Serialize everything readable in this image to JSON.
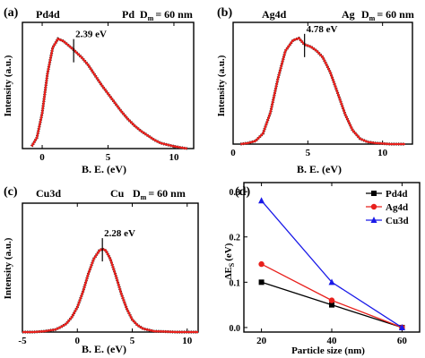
{
  "figure": {
    "panels": [
      {
        "label": "(a)",
        "header_left": "Pd4d",
        "header_element": "Pd",
        "dm_text": "D",
        "dm_sub": "m",
        "dm_value": "= 60 nm",
        "annotation": "2.39 eV",
        "xlabel": "B. E. (eV)",
        "ylabel": "Intensity (a.u.)"
      },
      {
        "label": "(b)",
        "header_left": "Ag4d",
        "header_element": "Ag",
        "dm_text": "D",
        "dm_sub": "m",
        "dm_value": "= 60 nm",
        "annotation": "4.78 eV",
        "xlabel": "B. E. (eV)",
        "ylabel": "Intensity (a.u.)"
      },
      {
        "label": "(c)",
        "header_left": "Cu3d",
        "header_element": "Cu",
        "dm_text": "D",
        "dm_sub": "m",
        "dm_value": "= 60 nm",
        "annotation": "2.28 eV",
        "xlabel": "B. E. (eV)",
        "ylabel": "Intensity (a.u.)"
      },
      {
        "label": "(d)",
        "xlabel": "Particle size (nm)",
        "ylabel_main": "ΔE",
        "ylabel_sub": "S",
        "ylabel_unit": "(eV)"
      }
    ]
  },
  "chart_data": [
    {
      "type": "line",
      "title": "Pd4d",
      "xlabel": "B. E. (eV)",
      "ylabel": "Intensity (a.u.)",
      "xlim": [
        -1.5,
        11.5
      ],
      "ylim": [
        0,
        1.15
      ],
      "xticks": [
        0,
        5,
        10
      ],
      "series": [
        {
          "name": "data",
          "color": "#111111",
          "style": "dotted",
          "x": [
            -0.8,
            -0.4,
            0.0,
            0.4,
            0.8,
            1.2,
            1.6,
            2.0,
            2.39,
            3.0,
            3.5,
            4.0,
            4.5,
            5.0,
            5.5,
            6.0,
            6.5,
            7.0,
            7.5,
            8.0,
            8.5,
            9.0,
            9.5,
            10.0,
            10.5,
            11.0
          ],
          "y": [
            0.02,
            0.1,
            0.32,
            0.68,
            0.92,
            1.0,
            0.98,
            0.94,
            0.9,
            0.83,
            0.76,
            0.67,
            0.58,
            0.5,
            0.42,
            0.34,
            0.27,
            0.21,
            0.16,
            0.12,
            0.08,
            0.05,
            0.035,
            0.02,
            0.01,
            0.0
          ]
        },
        {
          "name": "fit",
          "color": "#e8201c",
          "style": "solid",
          "x": [
            -0.8,
            -0.4,
            0.0,
            0.4,
            0.8,
            1.2,
            1.6,
            2.0,
            2.39,
            3.0,
            3.5,
            4.0,
            4.5,
            5.0,
            5.5,
            6.0,
            6.5,
            7.0,
            7.5,
            8.0,
            8.5,
            9.0,
            9.5,
            10.0,
            10.5,
            11.0
          ],
          "y": [
            0.02,
            0.1,
            0.32,
            0.68,
            0.92,
            1.0,
            0.98,
            0.94,
            0.9,
            0.83,
            0.76,
            0.67,
            0.58,
            0.5,
            0.42,
            0.34,
            0.27,
            0.21,
            0.16,
            0.12,
            0.08,
            0.05,
            0.035,
            0.02,
            0.01,
            0.0
          ]
        }
      ],
      "annotation": {
        "text": "2.39 eV",
        "x": 2.39
      }
    },
    {
      "type": "line",
      "title": "Ag4d",
      "xlabel": "B. E. (eV)",
      "ylabel": "Intensity (a.u.)",
      "xlim": [
        0,
        12
      ],
      "ylim": [
        0,
        1.15
      ],
      "xticks": [
        0,
        5,
        10
      ],
      "series": [
        {
          "name": "data",
          "color": "#111111",
          "style": "dotted",
          "x": [
            0.5,
            1.0,
            1.5,
            2.0,
            2.5,
            3.0,
            3.5,
            4.0,
            4.4,
            4.78,
            5.2,
            5.6,
            6.0,
            6.5,
            7.0,
            7.5,
            8.0,
            8.5,
            9.0,
            9.5,
            10.0,
            10.5,
            11.0,
            11.5
          ],
          "y": [
            0.0,
            0.01,
            0.03,
            0.1,
            0.3,
            0.62,
            0.88,
            0.98,
            1.0,
            0.94,
            0.92,
            0.88,
            0.82,
            0.68,
            0.48,
            0.28,
            0.13,
            0.05,
            0.02,
            0.01,
            0.005,
            0.0,
            0.0,
            0.0
          ]
        },
        {
          "name": "fit",
          "color": "#e8201c",
          "style": "solid",
          "x": [
            0.5,
            1.0,
            1.5,
            2.0,
            2.5,
            3.0,
            3.5,
            4.0,
            4.4,
            4.78,
            5.2,
            5.6,
            6.0,
            6.5,
            7.0,
            7.5,
            8.0,
            8.5,
            9.0,
            9.5,
            10.0,
            10.5,
            11.0,
            11.5
          ],
          "y": [
            0.0,
            0.01,
            0.03,
            0.1,
            0.3,
            0.62,
            0.88,
            0.98,
            1.0,
            0.94,
            0.92,
            0.88,
            0.82,
            0.68,
            0.48,
            0.28,
            0.13,
            0.05,
            0.02,
            0.01,
            0.005,
            0.0,
            0.0,
            0.0
          ]
        }
      ],
      "annotation": {
        "text": "4.78 eV",
        "x": 4.78
      }
    },
    {
      "type": "line",
      "title": "Cu3d",
      "xlabel": "B. E. (eV)",
      "ylabel": "Intensity (a.u.)",
      "xlim": [
        -5,
        11
      ],
      "ylim": [
        0,
        1.55
      ],
      "xticks": [
        -5,
        0,
        5,
        10
      ],
      "series": [
        {
          "name": "data",
          "color": "#111111",
          "style": "dotted",
          "x": [
            -5.0,
            -4.0,
            -3.0,
            -2.0,
            -1.5,
            -1.0,
            -0.5,
            0.0,
            0.5,
            1.0,
            1.5,
            2.0,
            2.28,
            2.6,
            3.0,
            3.5,
            4.0,
            4.5,
            5.0,
            5.5,
            6.0,
            7.0,
            8.0,
            9.0,
            10.0,
            11.0
          ],
          "y": [
            0.0,
            0.0,
            0.01,
            0.03,
            0.06,
            0.1,
            0.18,
            0.3,
            0.48,
            0.7,
            0.88,
            0.98,
            1.0,
            0.98,
            0.88,
            0.68,
            0.46,
            0.28,
            0.15,
            0.08,
            0.04,
            0.01,
            0.005,
            0.0,
            0.0,
            0.0
          ]
        },
        {
          "name": "fit",
          "color": "#e8201c",
          "style": "solid",
          "x": [
            -5.0,
            -4.0,
            -3.0,
            -2.0,
            -1.5,
            -1.0,
            -0.5,
            0.0,
            0.5,
            1.0,
            1.5,
            2.0,
            2.28,
            2.6,
            3.0,
            3.5,
            4.0,
            4.5,
            5.0,
            5.5,
            6.0,
            7.0,
            8.0,
            9.0,
            10.0,
            11.0
          ],
          "y": [
            0.0,
            0.0,
            0.01,
            0.03,
            0.06,
            0.1,
            0.18,
            0.3,
            0.48,
            0.7,
            0.88,
            0.98,
            1.0,
            0.98,
            0.88,
            0.68,
            0.46,
            0.28,
            0.15,
            0.08,
            0.04,
            0.01,
            0.005,
            0.0,
            0.0,
            0.0
          ]
        }
      ],
      "annotation": {
        "text": "2.28 eV",
        "x": 2.28
      }
    },
    {
      "type": "line",
      "title": "",
      "xlabel": "Particle size (nm)",
      "ylabel": "ΔES (eV)",
      "xlim": [
        15,
        65
      ],
      "ylim": [
        -0.01,
        0.32
      ],
      "xticks": [
        20,
        40,
        60
      ],
      "yticks": [
        0.0,
        0.1,
        0.2,
        0.3
      ],
      "categories": [
        20,
        40,
        60
      ],
      "series": [
        {
          "name": "Pd4d",
          "color": "#000000",
          "marker": "square",
          "values": [
            0.1,
            0.05,
            0.0
          ]
        },
        {
          "name": "Ag4d",
          "color": "#e8201c",
          "marker": "circle",
          "values": [
            0.14,
            0.06,
            0.0
          ]
        },
        {
          "name": "Cu3d",
          "color": "#1a1ae8",
          "marker": "triangle",
          "values": [
            0.28,
            0.1,
            0.0
          ]
        }
      ],
      "legend": "top-right"
    }
  ]
}
